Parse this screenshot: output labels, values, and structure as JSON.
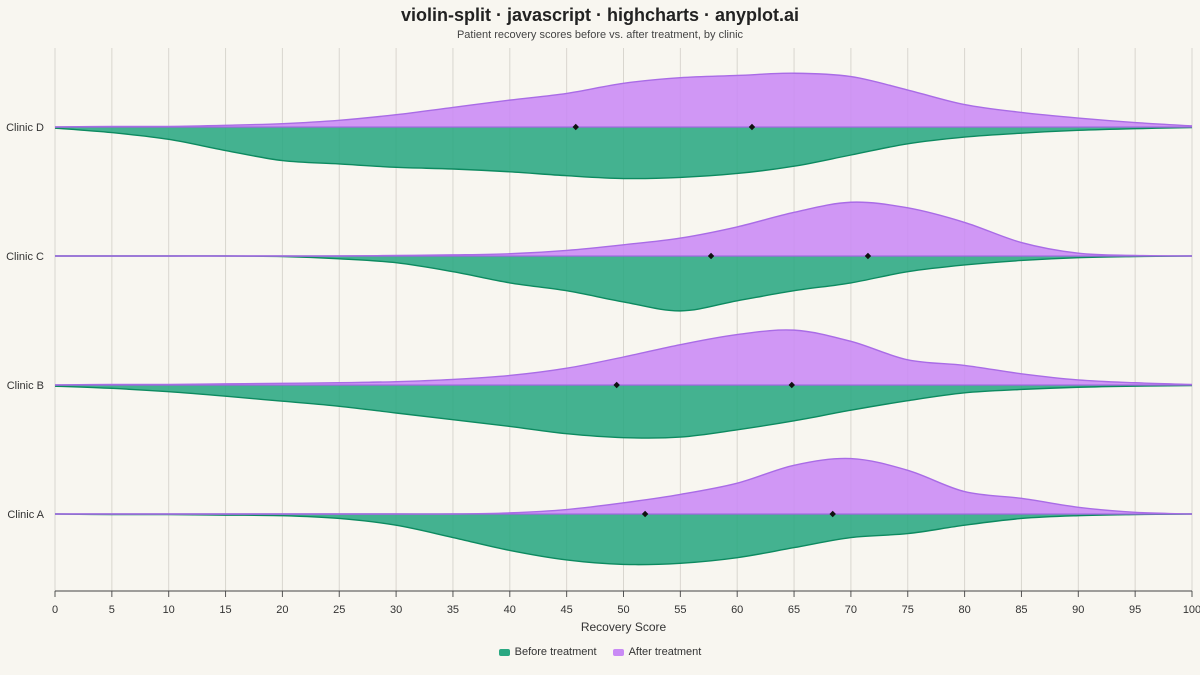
{
  "title": "violin-split · javascript · highcharts · anyplot.ai",
  "subtitle": "Patient recovery scores before vs. after treatment, by clinic",
  "colors": {
    "before": "#2aa882",
    "before_line": "#0d8a60",
    "after": "#c98af5",
    "after_line": "#a96ce6",
    "median": "#111111"
  },
  "chart_data": {
    "type": "split-violin",
    "title": "violin-split · javascript · highcharts · anyplot.ai",
    "subtitle": "Patient recovery scores before vs. after treatment, by clinic",
    "xlabel": "Recovery Score",
    "xlim": [
      0,
      100
    ],
    "xticks": [
      0,
      5,
      10,
      15,
      20,
      25,
      30,
      35,
      40,
      45,
      50,
      55,
      60,
      65,
      70,
      75,
      80,
      85,
      90,
      95,
      100
    ],
    "categories": [
      "Clinic D",
      "Clinic C",
      "Clinic B",
      "Clinic A"
    ],
    "density_x": [
      0,
      5,
      10,
      15,
      20,
      25,
      30,
      35,
      40,
      45,
      50,
      55,
      60,
      65,
      70,
      75,
      80,
      85,
      90,
      95,
      100
    ],
    "legend_position": "bottom-center",
    "series": [
      {
        "name": "Before treatment",
        "side": "below",
        "groups": [
          {
            "category": "Clinic D",
            "median": 45.8,
            "density": [
              0.02,
              0.1,
              0.22,
              0.42,
              0.6,
              0.66,
              0.72,
              0.75,
              0.8,
              0.87,
              0.92,
              0.9,
              0.83,
              0.7,
              0.5,
              0.3,
              0.18,
              0.11,
              0.06,
              0.03,
              0.01
            ]
          },
          {
            "category": "Clinic C",
            "median": 57.7,
            "density": [
              0,
              0,
              0,
              0,
              0.01,
              0.05,
              0.12,
              0.28,
              0.48,
              0.62,
              0.82,
              0.98,
              0.8,
              0.62,
              0.48,
              0.28,
              0.16,
              0.08,
              0.03,
              0.01,
              0
            ]
          },
          {
            "category": "Clinic B",
            "median": 49.4,
            "density": [
              0.02,
              0.06,
              0.12,
              0.2,
              0.29,
              0.38,
              0.5,
              0.62,
              0.74,
              0.87,
              0.94,
              0.93,
              0.8,
              0.64,
              0.45,
              0.28,
              0.14,
              0.08,
              0.04,
              0.02,
              0.01
            ]
          },
          {
            "category": "Clinic A",
            "median": 51.9,
            "density": [
              0,
              0.01,
              0.01,
              0.02,
              0.03,
              0.08,
              0.2,
              0.42,
              0.65,
              0.82,
              0.9,
              0.88,
              0.78,
              0.6,
              0.42,
              0.35,
              0.2,
              0.08,
              0.03,
              0.01,
              0
            ]
          }
        ]
      },
      {
        "name": "After treatment",
        "side": "above",
        "groups": [
          {
            "category": "Clinic D",
            "median": 61.3,
            "density": [
              0,
              0.01,
              0.01,
              0.03,
              0.06,
              0.12,
              0.22,
              0.35,
              0.48,
              0.6,
              0.78,
              0.88,
              0.92,
              0.96,
              0.9,
              0.66,
              0.4,
              0.26,
              0.16,
              0.08,
              0.02
            ]
          },
          {
            "category": "Clinic C",
            "median": 71.5,
            "density": [
              0,
              0,
              0,
              0,
              0,
              0,
              0.01,
              0.02,
              0.04,
              0.1,
              0.2,
              0.32,
              0.52,
              0.78,
              0.96,
              0.86,
              0.6,
              0.24,
              0.05,
              0.01,
              0
            ]
          },
          {
            "category": "Clinic B",
            "median": 64.8,
            "density": [
              0,
              0.01,
              0.01,
              0.02,
              0.03,
              0.04,
              0.06,
              0.1,
              0.17,
              0.3,
              0.5,
              0.72,
              0.9,
              0.98,
              0.78,
              0.45,
              0.35,
              0.2,
              0.09,
              0.04,
              0.01
            ]
          },
          {
            "category": "Clinic A",
            "median": 68.4,
            "density": [
              0,
              0,
              0,
              0,
              0,
              0,
              0,
              0,
              0.02,
              0.08,
              0.2,
              0.35,
              0.55,
              0.87,
              0.99,
              0.78,
              0.4,
              0.28,
              0.12,
              0.03,
              0
            ]
          }
        ]
      }
    ]
  }
}
